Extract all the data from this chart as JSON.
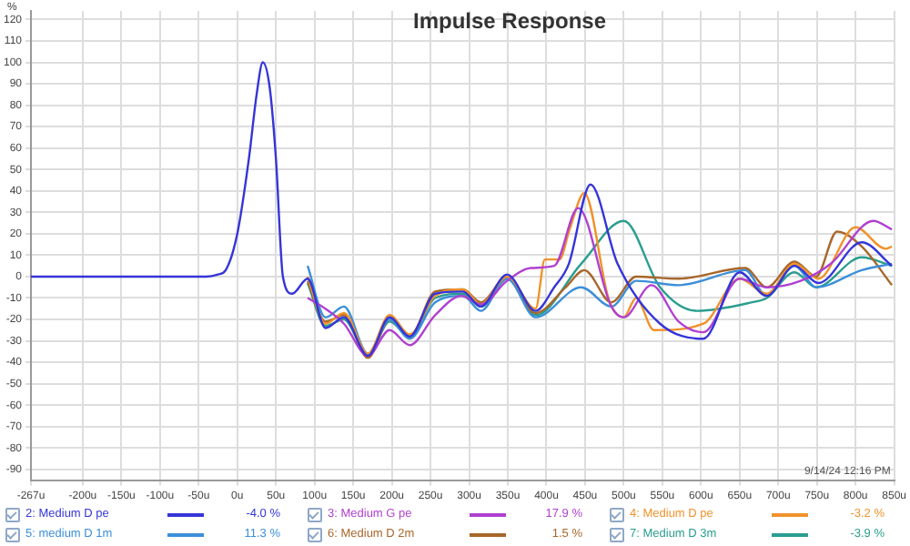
{
  "chart_data": {
    "type": "line",
    "title": "Impulse Response",
    "ylabel": "%",
    "xlim": [
      -267,
      850
    ],
    "ylim": [
      -95,
      124
    ],
    "xticks": [
      {
        "value": -267,
        "label": "-267u"
      },
      {
        "value": -200,
        "label": "-200u"
      },
      {
        "value": -150,
        "label": "-150u"
      },
      {
        "value": -100,
        "label": "-100u"
      },
      {
        "value": -50,
        "label": "-50u"
      },
      {
        "value": 0,
        "label": "0u"
      },
      {
        "value": 50,
        "label": "50u"
      },
      {
        "value": 100,
        "label": "100u"
      },
      {
        "value": 150,
        "label": "150u"
      },
      {
        "value": 200,
        "label": "200u"
      },
      {
        "value": 250,
        "label": "250u"
      },
      {
        "value": 300,
        "label": "300u"
      },
      {
        "value": 350,
        "label": "350u"
      },
      {
        "value": 400,
        "label": "400u"
      },
      {
        "value": 450,
        "label": "450u"
      },
      {
        "value": 500,
        "label": "500u"
      },
      {
        "value": 550,
        "label": "550u"
      },
      {
        "value": 600,
        "label": "600u"
      },
      {
        "value": 650,
        "label": "650u"
      },
      {
        "value": 700,
        "label": "700u"
      },
      {
        "value": 750,
        "label": "750u"
      },
      {
        "value": 800,
        "label": "800u"
      },
      {
        "value": 850,
        "label": "850u"
      }
    ],
    "yticks": [
      -90,
      -80,
      -70,
      -60,
      -50,
      -40,
      -30,
      -20,
      -10,
      0,
      10,
      20,
      30,
      40,
      50,
      60,
      70,
      80,
      90,
      100,
      110,
      120
    ],
    "grid": true,
    "legend": "bottom",
    "marker": "none",
    "line_style": "solid",
    "annotations": [
      "-4.0 %",
      "17.9 %",
      "-3.2 %",
      "11.3 %",
      "1.5 %",
      "-3.9 %",
      "9/14/24 12:16 PM"
    ],
    "series": [
      {
        "name": "2: Medium D pe",
        "color": "#3535d8",
        "x": [
          -267,
          -40,
          -25,
          -15,
          0,
          15,
          25,
          33,
          42,
          50,
          59,
          71,
          91,
          114,
          138,
          169,
          197,
          223,
          256,
          292,
          315,
          349,
          386,
          410,
          429,
          457,
          492,
          547,
          603,
          650,
          685,
          721,
          752,
          808,
          847
        ],
        "values": [
          0,
          0,
          1,
          3,
          20,
          55,
          85,
          100,
          88,
          55,
          0,
          -8,
          -1,
          -24,
          -19,
          -37,
          -19,
          -28,
          -8,
          -7,
          -14,
          1,
          -16,
          -5,
          6,
          43,
          6,
          -22,
          -29,
          2,
          -9,
          5,
          -3,
          16,
          5
        ]
      },
      {
        "name": "3: Medium G pe",
        "color": "#b040d0",
        "x": [
          91,
          114,
          138,
          169,
          197,
          223,
          256,
          290,
          315,
          349,
          380,
          410,
          441,
          484,
          500,
          536,
          571,
          603,
          650,
          685,
          729,
          768,
          823,
          847
        ],
        "values": [
          -10,
          -15,
          -22,
          -37,
          -25,
          -32,
          -18,
          -9,
          -13,
          -2,
          4,
          5,
          32,
          -14,
          -19,
          -4,
          -21,
          -26,
          -1,
          -5,
          -2,
          6,
          26,
          22
        ]
      },
      {
        "name": "4: Medium D pe",
        "color": "#f0922b",
        "x": [
          91,
          114,
          138,
          169,
          197,
          223,
          256,
          292,
          315,
          349,
          386,
          398,
          417,
          430,
          449,
          481,
          500,
          516,
          539,
          603,
          650,
          685,
          721,
          752,
          800,
          839,
          847
        ],
        "values": [
          0,
          -22,
          -17,
          -36,
          -18,
          -27,
          -9,
          -6,
          -13,
          0,
          -15,
          8,
          8,
          22,
          39,
          -11,
          -19,
          -10,
          -25,
          -22,
          -1,
          -8,
          6,
          -1,
          23,
          13,
          14
        ]
      },
      {
        "name": "5: medium D 1m",
        "color": "#3c8fd8",
        "x": [
          91,
          114,
          138,
          169,
          197,
          223,
          256,
          292,
          315,
          349,
          386,
          445,
          484,
          516,
          571,
          657,
          685,
          721,
          749,
          808,
          847
        ],
        "values": [
          5,
          -19,
          -14,
          -36,
          -20,
          -29,
          -12,
          -9,
          -16,
          -1,
          -19,
          -5,
          -14,
          -2,
          -4,
          3,
          -9,
          5,
          -5,
          3,
          6
        ]
      },
      {
        "name": "6: Medium D 2m",
        "color": "#a8662a",
        "x": [
          91,
          114,
          138,
          169,
          197,
          223,
          256,
          292,
          315,
          349,
          386,
          425,
          449,
          484,
          516,
          571,
          657,
          685,
          721,
          749,
          776,
          808,
          847
        ],
        "values": [
          -2,
          -21,
          -18,
          -38,
          -20,
          -28,
          -7,
          -6,
          -12,
          0,
          -17,
          -5,
          3,
          -12,
          0,
          -1,
          4,
          -5,
          7,
          0,
          21,
          14,
          -4
        ]
      },
      {
        "name": "7: Medium D 3m",
        "color": "#2a9d8f",
        "x": [
          91,
          114,
          138,
          169,
          197,
          223,
          256,
          292,
          315,
          349,
          386,
          445,
          500,
          547,
          595,
          666,
          685,
          721,
          749,
          808,
          847
        ],
        "values": [
          -3,
          -23,
          -20,
          -37,
          -21,
          -28,
          -10,
          -8,
          -14,
          -1,
          -18,
          6,
          26,
          -5,
          -16,
          -12,
          -10,
          2,
          -5,
          9,
          5
        ]
      }
    ]
  }
}
